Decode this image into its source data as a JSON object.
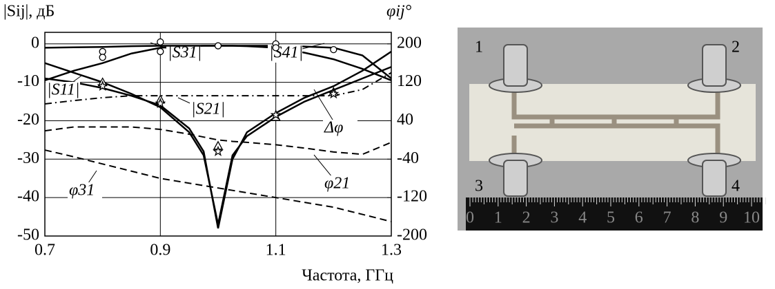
{
  "chart_data": {
    "type": "line",
    "y_label": "|Sij|, дБ",
    "y2_label": "φij°",
    "x_label": "Частота, ГГц",
    "xlim": [
      0.7,
      1.3
    ],
    "xticks": [
      0.7,
      0.9,
      1.1,
      1.3
    ],
    "ylim": [
      -50,
      3
    ],
    "yticks": [
      0,
      -10,
      -20,
      -30,
      -40,
      -50
    ],
    "y2lim": [
      -200,
      224
    ],
    "y2ticks": [
      200,
      120,
      40,
      -40,
      -120,
      -200
    ],
    "grid": true,
    "x": [
      0.7,
      0.75,
      0.8,
      0.85,
      0.9,
      0.95,
      0.975,
      1.0,
      1.025,
      1.05,
      1.1,
      1.15,
      1.2,
      1.25,
      1.3
    ],
    "series": [
      {
        "name": "|S31|",
        "color": "#000",
        "style": "solid",
        "values": [
          -9.5,
          -7,
          -5,
          -2.5,
          -1,
          -0.6,
          -0.5,
          -0.5,
          -0.5,
          -0.6,
          -1,
          -2.3,
          -4,
          -6.5,
          -9.5
        ]
      },
      {
        "name": "|S41|",
        "color": "#000",
        "style": "solid",
        "values": [
          -1,
          -0.9,
          -0.8,
          -0.6,
          -0.5,
          -0.5,
          -0.5,
          -0.5,
          -0.5,
          -0.5,
          -0.5,
          -0.7,
          -1,
          -3,
          -9
        ]
      },
      {
        "name": "|S11|",
        "color": "#000",
        "style": "solid",
        "values": [
          -9,
          -10,
          -11.5,
          -13.5,
          -16,
          -22,
          -28,
          -48,
          -30,
          -23,
          -18,
          -14,
          -11,
          -7,
          -2
        ]
      },
      {
        "name": "|S21|",
        "color": "#000",
        "style": "solid",
        "values": [
          -5,
          -7.5,
          -10,
          -13,
          -16.5,
          -23,
          -29,
          -47,
          -29,
          -24,
          -19,
          -15,
          -12,
          -9,
          -6
        ]
      },
      {
        "name": "Δφ",
        "color": "#000",
        "style": "dashdot",
        "axis": "y2",
        "values": [
          75,
          82,
          88,
          92,
          92,
          92,
          92,
          92,
          92,
          92,
          92,
          92,
          92,
          105,
          140
        ]
      },
      {
        "name": "φ21",
        "color": "#000",
        "style": "dashed",
        "axis": "y2",
        "values": [
          19,
          27,
          27,
          27,
          22,
          12,
          6,
          0,
          -3,
          -5,
          -10,
          -17,
          -25,
          -30,
          -5
        ]
      },
      {
        "name": "φ31",
        "color": "#000",
        "style": "dashed",
        "axis": "y2",
        "values": [
          -21,
          -35,
          -50,
          -65,
          -80,
          -90,
          -95,
          -100,
          -105,
          -110,
          -120,
          -130,
          -140,
          -155,
          -170
        ]
      }
    ],
    "markers": [
      {
        "marker": "circle",
        "x": [
          0.8,
          0.8,
          0.9,
          0.9,
          1.0,
          1.1,
          1.1,
          1.2
        ],
        "values": [
          -2,
          -3.5,
          0.5,
          -2,
          -0.5,
          0,
          -1,
          -1.5
        ]
      },
      {
        "marker": "triangle",
        "x": [
          0.8,
          0.9,
          1.0,
          1.1,
          1.2
        ],
        "values": [
          -10,
          -14.5,
          -26.5,
          -19,
          -12.5
        ]
      },
      {
        "marker": "star",
        "x": [
          0.8,
          0.9,
          1.0,
          1.1,
          1.2
        ],
        "values": [
          -11,
          -15.5,
          -28,
          -18.5,
          -13
        ]
      }
    ]
  },
  "photo": {
    "ports": [
      "1",
      "2",
      "3",
      "4"
    ],
    "ruler": [
      0,
      1,
      2,
      3,
      4,
      5,
      6,
      7,
      8,
      9,
      10
    ]
  }
}
